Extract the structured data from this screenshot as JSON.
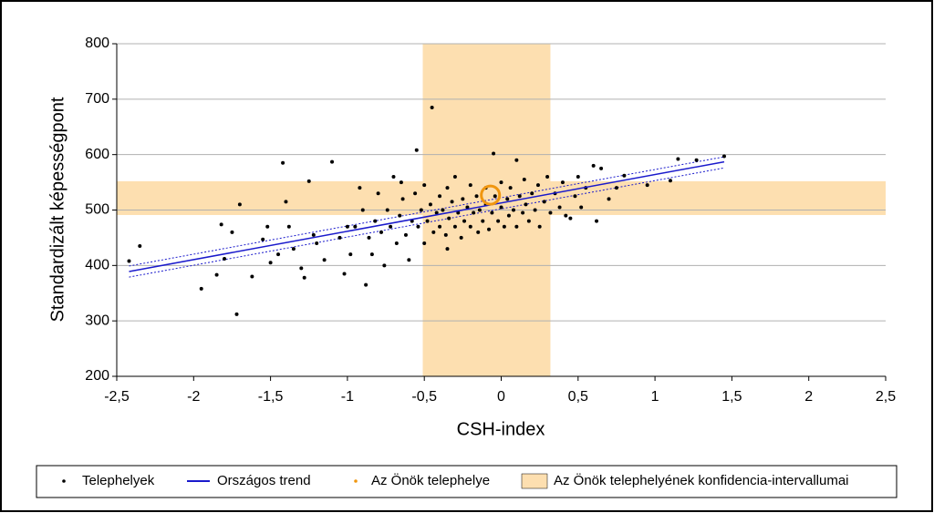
{
  "chart_data": {
    "type": "scatter",
    "xlabel": "CSH-index",
    "ylabel": "Standardizált képességpont",
    "xlim": [
      -2.5,
      2.5
    ],
    "ylim": [
      200,
      800
    ],
    "xticks": [
      {
        "value": -2.5,
        "label": "-2,5"
      },
      -2,
      {
        "value": -1.5,
        "label": "-1,5"
      },
      -1,
      {
        "value": -0.5,
        "label": "-0,5"
      },
      0,
      {
        "value": 0.5,
        "label": "0,5"
      },
      1,
      {
        "value": 1.5,
        "label": "1,5"
      },
      2,
      {
        "value": 2.5,
        "label": "2,5"
      }
    ],
    "yticks": [
      200,
      300,
      400,
      500,
      600,
      700,
      800
    ],
    "grid": true,
    "series": [
      {
        "name": "Telephelyek",
        "color": "#000000",
        "x": [
          -2.42,
          -2.35,
          -1.95,
          -1.85,
          -1.82,
          -1.8,
          -1.75,
          -1.72,
          -1.7,
          -1.62,
          -1.55,
          -1.52,
          -1.5,
          -1.45,
          -1.42,
          -1.4,
          -1.38,
          -1.35,
          -1.3,
          -1.28,
          -1.25,
          -1.22,
          -1.2,
          -1.15,
          -1.1,
          -1.05,
          -1.02,
          -1.0,
          -0.98,
          -0.95,
          -0.92,
          -0.9,
          -0.88,
          -0.86,
          -0.84,
          -0.82,
          -0.8,
          -0.78,
          -0.76,
          -0.74,
          -0.72,
          -0.7,
          -0.68,
          -0.66,
          -0.64,
          -0.62,
          -0.6,
          -0.58,
          -0.56,
          -0.55,
          -0.54,
          -0.52,
          -0.5,
          -0.5,
          -0.48,
          -0.46,
          -0.45,
          -0.44,
          -0.42,
          -0.4,
          -0.4,
          -0.38,
          -0.36,
          -0.35,
          -0.34,
          -0.32,
          -0.3,
          -0.3,
          -0.28,
          -0.26,
          -0.25,
          -0.24,
          -0.22,
          -0.2,
          -0.2,
          -0.18,
          -0.16,
          -0.15,
          -0.14,
          -0.12,
          -0.1,
          -0.1,
          -0.08,
          -0.06,
          -0.05,
          -0.04,
          -0.02,
          0,
          0,
          0.02,
          0.04,
          0.05,
          0.06,
          0.08,
          0.1,
          0.1,
          0.12,
          0.14,
          0.15,
          0.16,
          0.18,
          0.2,
          0.22,
          0.24,
          0.25,
          0.28,
          0.3,
          0.32,
          0.35,
          0.38,
          0.4,
          0.42,
          0.45,
          0.48,
          0.5,
          0.52,
          0.55,
          0.6,
          0.62,
          0.65,
          0.7,
          0.75,
          0.8,
          0.95,
          1.1,
          1.15,
          1.27,
          1.45,
          -0.65,
          -0.35
        ],
        "values": [
          408,
          435,
          358,
          383,
          474,
          412,
          460,
          312,
          510,
          380,
          447,
          470,
          405,
          420,
          585,
          515,
          470,
          430,
          395,
          378,
          552,
          455,
          440,
          410,
          587,
          450,
          385,
          470,
          420,
          470,
          540,
          500,
          365,
          450,
          420,
          480,
          530,
          460,
          400,
          500,
          470,
          560,
          440,
          490,
          520,
          455,
          410,
          480,
          530,
          608,
          470,
          500,
          440,
          545,
          480,
          510,
          685,
          460,
          495,
          525,
          470,
          500,
          455,
          540,
          485,
          515,
          470,
          560,
          495,
          450,
          520,
          480,
          505,
          545,
          470,
          495,
          525,
          460,
          500,
          480,
          540,
          510,
          465,
          495,
          602,
          525,
          480,
          505,
          550,
          470,
          520,
          490,
          540,
          500,
          590,
          470,
          525,
          495,
          555,
          510,
          480,
          530,
          500,
          545,
          470,
          515,
          560,
          495,
          530,
          505,
          550,
          490,
          485,
          525,
          560,
          505,
          540,
          580,
          480,
          575,
          520,
          540,
          562,
          545,
          553,
          592,
          590,
          597,
          550,
          430
        ]
      },
      {
        "name": "Országos trend",
        "color": "#1a1acc",
        "x": [
          -2.42,
          1.45
        ],
        "values": [
          389,
          587
        ],
        "lower": [
          379,
          576
        ],
        "upper": [
          399,
          596
        ]
      },
      {
        "name": "Az Önök telephelye",
        "color": "#f0960f",
        "x": [
          -0.07
        ],
        "values": [
          527
        ]
      },
      {
        "name": "Az Önök telephelyének konfidencia-intervallumai",
        "color": "#fddfb0",
        "xrange": [
          -0.51,
          0.32
        ],
        "yrange": [
          491,
          552
        ]
      }
    ]
  }
}
